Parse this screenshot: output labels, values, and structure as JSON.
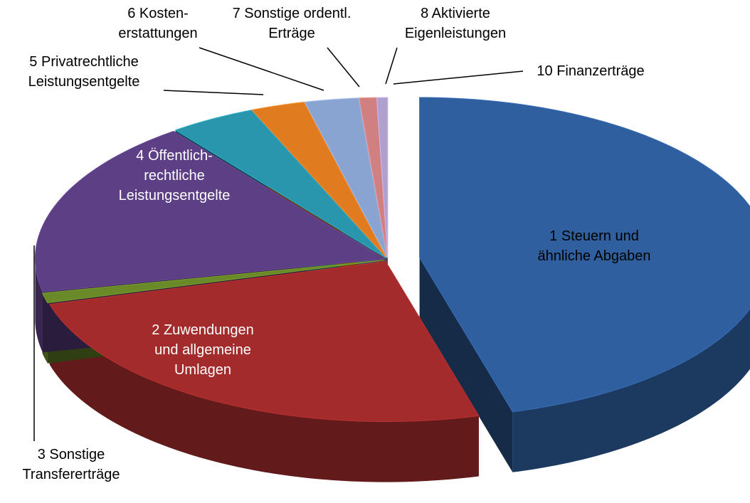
{
  "chart_data": {
    "type": "pie3d",
    "categories": [
      "1 Steuern und\nähnliche Abgaben",
      "2 Zuwendungen\nund allgemeine\nUmlagen",
      "3 Sonstige\nTransfererträge",
      "4 Öffentlich-\nrechtliche\nLeistungsentgelte",
      "5 Privatrechtliche\nLeistungsentgelte",
      "6 Kosten-\nerstattungen",
      "7 Sonstige ordentl.\nErträge",
      "8 Aktivierte\nEigenleistungen",
      "10 Finanzerträge"
    ],
    "values": [
      45.7,
      25,
      1,
      18,
      4,
      2.5,
      2.5,
      0.8,
      0.5
    ],
    "colors": [
      "#2f5f9e",
      "#a32b2b",
      "#6a8a2a",
      "#5d3f86",
      "#2a96ad",
      "#e07b20",
      "#8aa4d2",
      "#d08080",
      "#b0a0d0"
    ]
  }
}
